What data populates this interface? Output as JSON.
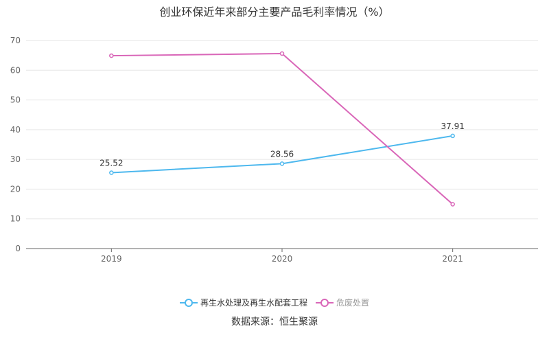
{
  "chart_data": {
    "type": "line",
    "title": "创业环保近年来部分主要产品毛利率情况（%）",
    "categories": [
      "2019",
      "2020",
      "2021"
    ],
    "ylim": [
      0,
      70
    ],
    "yticks": [
      0,
      10,
      20,
      30,
      40,
      50,
      60,
      70
    ],
    "grid": true,
    "legend_position": "bottom",
    "series": [
      {
        "name": "再生水处理及再生水配套工程",
        "values": [
          25.52,
          28.56,
          37.91
        ],
        "color": "#4db8ee",
        "labels": [
          "25.52",
          "28.56",
          "37.91"
        ]
      },
      {
        "name": "危废处置",
        "values": [
          64.9,
          65.6,
          14.9
        ],
        "color": "#d966b8",
        "labels": null
      }
    ],
    "source": "数据来源：恒生聚源"
  }
}
